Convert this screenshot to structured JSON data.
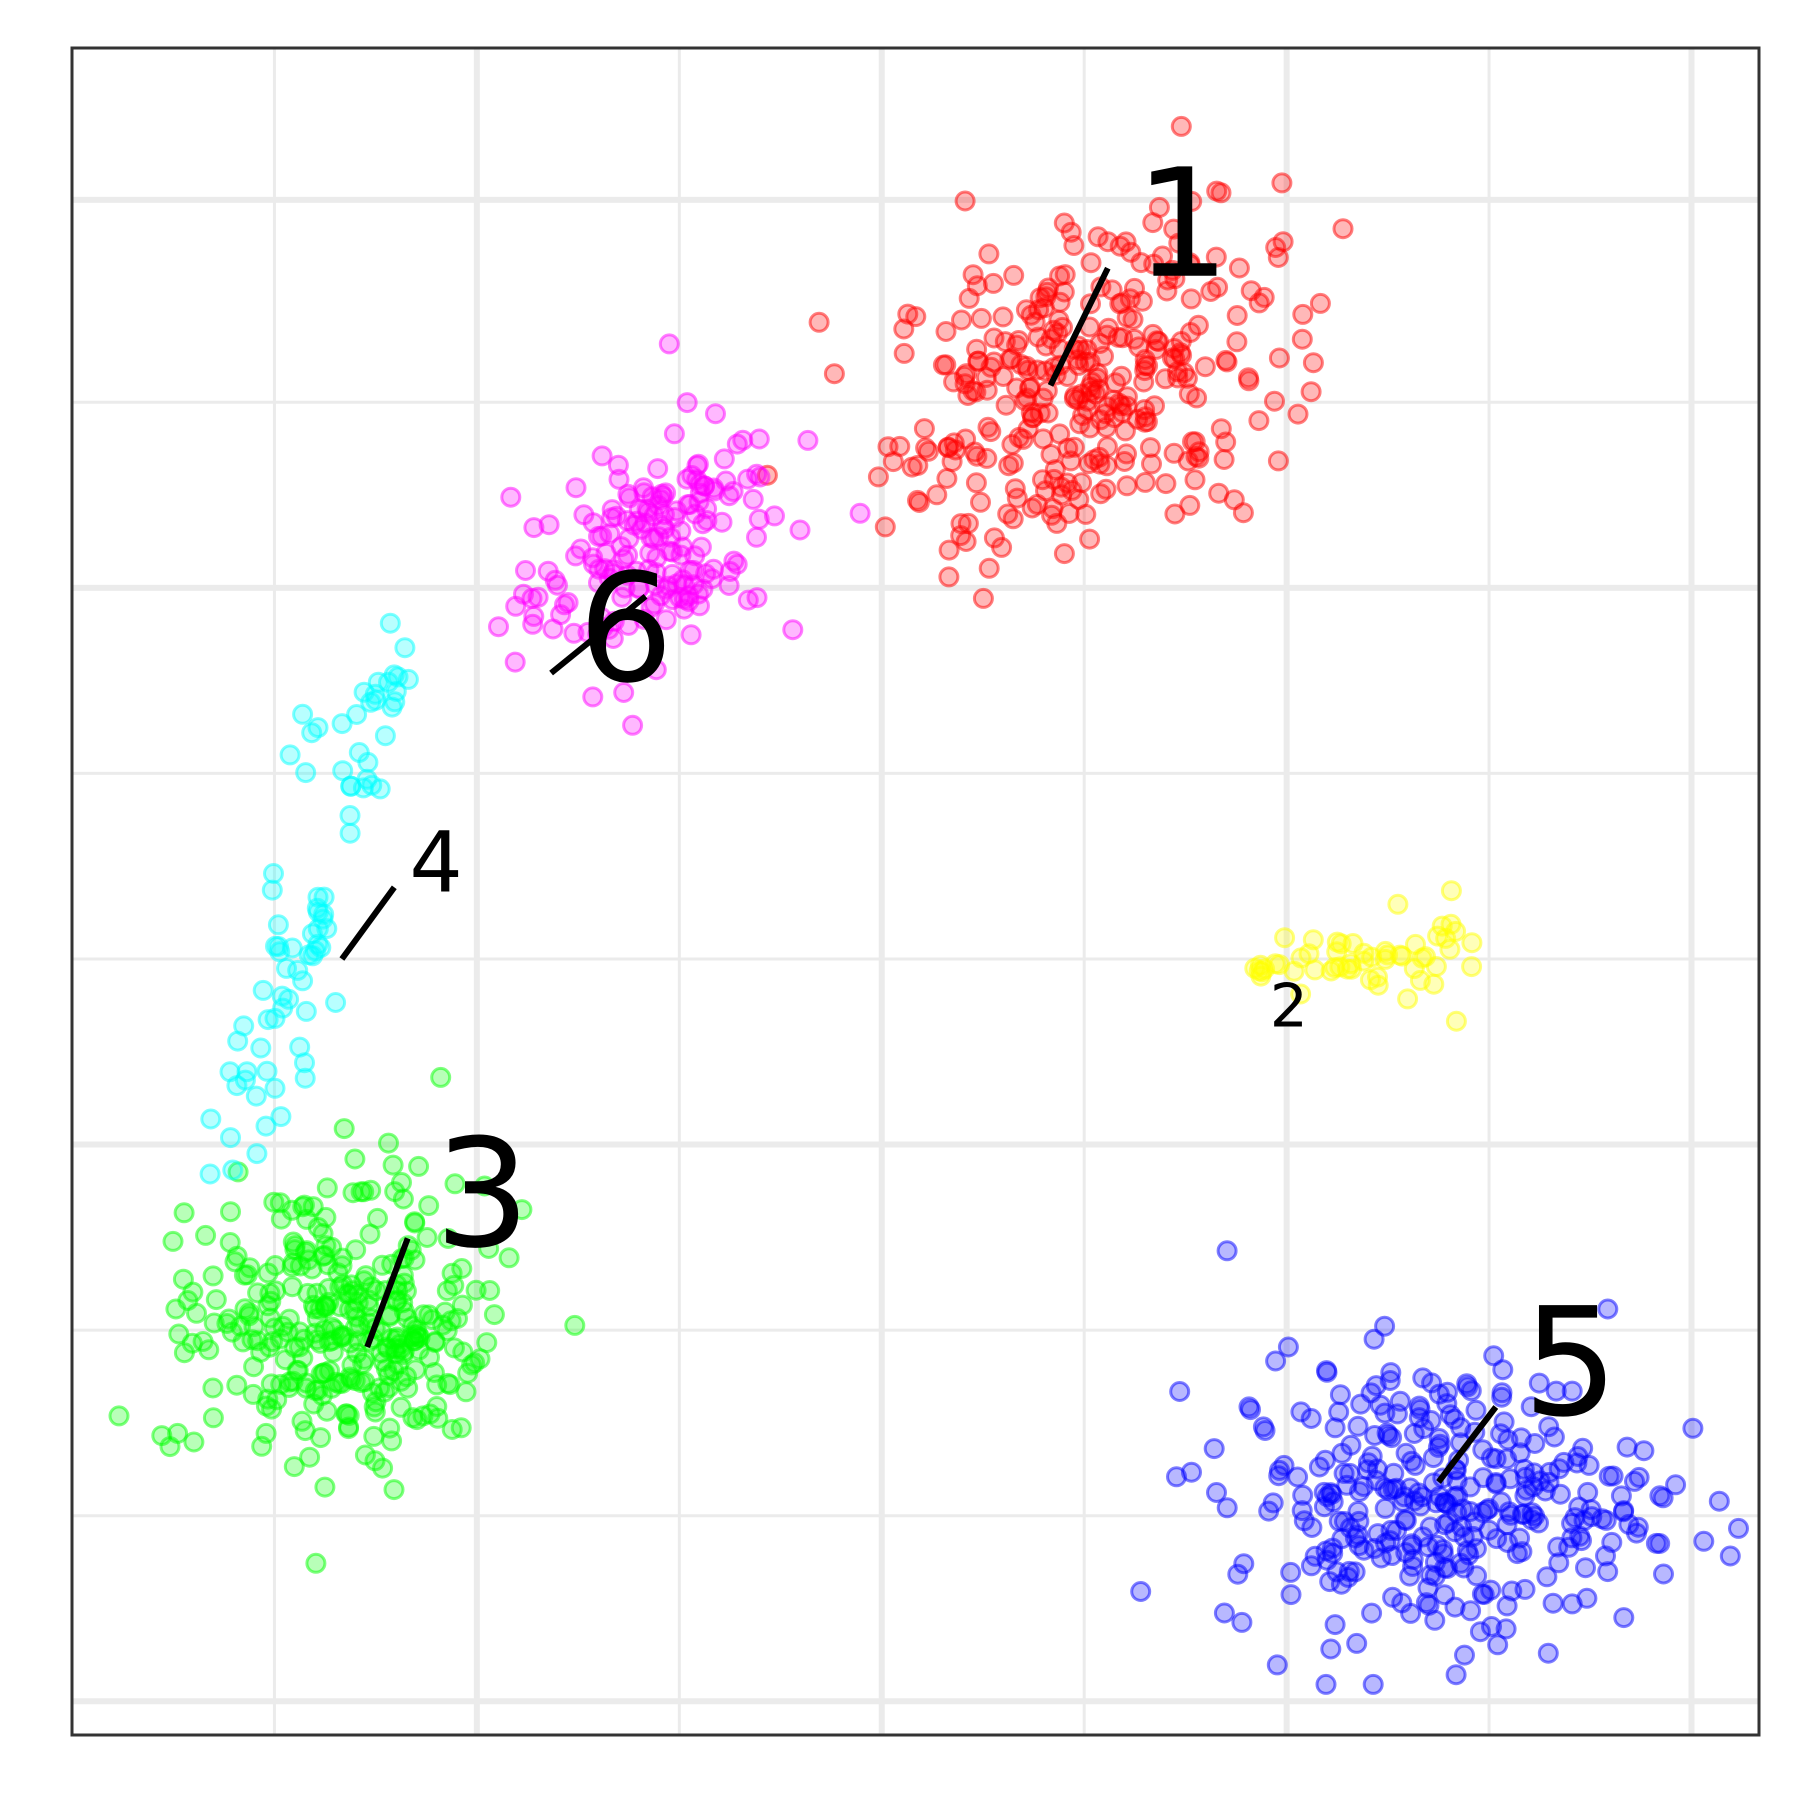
{
  "chart_data": {
    "type": "scatter",
    "title": "",
    "xlabel": "",
    "ylabel": "",
    "xlim": [
      0,
      100
    ],
    "ylim": [
      0,
      100
    ],
    "grid": true,
    "axis_ticks_labeled": false,
    "legend": "none",
    "x_gridlines_major": [
      24,
      48,
      72,
      96
    ],
    "x_gridlines_minor": [
      12,
      36,
      60,
      84
    ],
    "y_gridlines_major": [
      2,
      35,
      68,
      91
    ],
    "y_gridlines_minor": [
      13,
      24,
      46,
      57,
      79
    ],
    "series": [
      {
        "color": "#ff0000",
        "label": "1",
        "label_size": "large",
        "label_pos": [
          63,
          86.5
        ],
        "label_anchor": [
          58,
          80
        ],
        "count": 330,
        "center": [
          60,
          80
        ],
        "spread": [
          10.5,
          8.5
        ]
      },
      {
        "color": "#ffff00",
        "label": "2",
        "label_size": "small",
        "label_pos": [
          71,
          42
        ],
        "label_anchor": [
          71,
          42
        ],
        "count": 55,
        "center": [
          76,
          46
        ],
        "spread": [
          3,
          1.2
        ]
      },
      {
        "color": "#00ff00",
        "label": "3",
        "label_size": "large",
        "label_pos": [
          21.5,
          29
        ],
        "label_anchor": [
          17.5,
          23
        ],
        "count": 330,
        "center": [
          16,
          24
        ],
        "spread": [
          8,
          8
        ]
      },
      {
        "color": "#00ffff",
        "label": "4",
        "label_size": "medium",
        "label_pos": [
          20,
          50
        ],
        "label_anchor": [
          16,
          46
        ],
        "count": 85,
        "center": [
          15,
          45
        ],
        "spread": [
          5,
          10
        ]
      },
      {
        "color": "#0000ff",
        "label": "5",
        "label_size": "large",
        "label_pos": [
          86,
          19
        ],
        "label_anchor": [
          81,
          15
        ],
        "count": 330,
        "center": [
          81,
          14
        ],
        "spread": [
          11.5,
          7.5
        ]
      },
      {
        "color": "#ff00ff",
        "label": "6",
        "label_size": "large",
        "label_pos": [
          30,
          62.5
        ],
        "label_anchor": [
          34,
          67.5
        ],
        "count": 180,
        "center": [
          34,
          70
        ],
        "spread": [
          7,
          6
        ]
      }
    ]
  }
}
